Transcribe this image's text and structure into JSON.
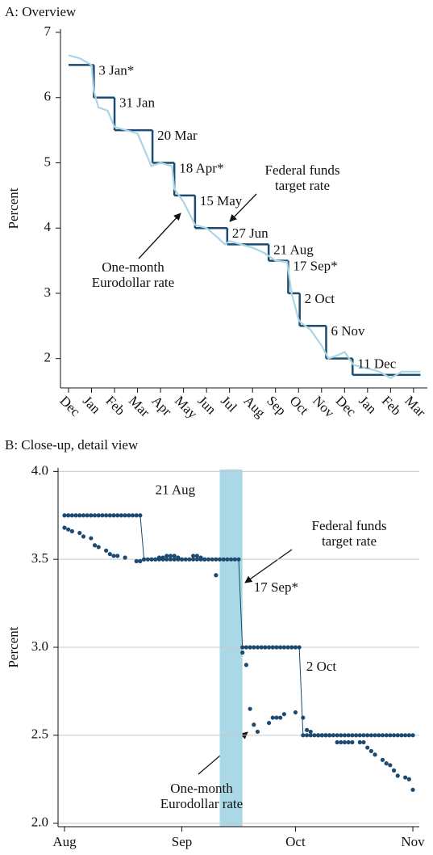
{
  "chart_data": [
    {
      "type": "line",
      "title": "A:  Overview",
      "ylabel": "Percent",
      "xlim": [
        -0.35,
        15.6
      ],
      "ylim": [
        1.55,
        7.05
      ],
      "yticks": [
        2,
        3,
        4,
        5,
        6,
        7
      ],
      "grid": false,
      "xticks": [
        {
          "value": 0,
          "label": "Dec"
        },
        {
          "value": 1,
          "label": "Jan"
        },
        {
          "value": 2,
          "label": "Feb"
        },
        {
          "value": 3,
          "label": "Mar"
        },
        {
          "value": 4,
          "label": "Apr"
        },
        {
          "value": 5,
          "label": "May"
        },
        {
          "value": 6,
          "label": "Jun"
        },
        {
          "value": 7,
          "label": "Jul"
        },
        {
          "value": 8,
          "label": "Aug"
        },
        {
          "value": 9,
          "label": "Sep"
        },
        {
          "value": 10,
          "label": "Oct"
        },
        {
          "value": 11,
          "label": "Nov"
        },
        {
          "value": 12,
          "label": "Dec"
        },
        {
          "value": 13,
          "label": "Jan"
        },
        {
          "value": 14,
          "label": "Feb"
        },
        {
          "value": 15,
          "label": "Mar"
        }
      ],
      "series": [
        {
          "name": "Federal funds target rate",
          "color": "#1d4a70",
          "step": true,
          "x": [
            0,
            1.1,
            2.0,
            3.65,
            4.6,
            5.5,
            6.9,
            8.7,
            9.55,
            10.05,
            11.2,
            12.35,
            15.3
          ],
          "values": [
            6.5,
            6.0,
            5.5,
            5.0,
            4.5,
            4.0,
            3.75,
            3.5,
            3.0,
            2.5,
            2.0,
            1.75,
            1.75
          ]
        },
        {
          "name": "One-month Eurodollar rate",
          "color": "#a9d6e5",
          "x": [
            0,
            0.5,
            1.0,
            1.1,
            1.3,
            1.7,
            2.0,
            2.5,
            3.0,
            3.3,
            3.6,
            4.0,
            4.5,
            4.6,
            5.0,
            5.5,
            6.0,
            6.5,
            6.8,
            7.0,
            7.5,
            8.0,
            8.5,
            9.0,
            9.5,
            9.7,
            10.0,
            10.1,
            10.5,
            11.0,
            11.3,
            11.7,
            12.0,
            12.4,
            13.0,
            13.5,
            14.0,
            14.5,
            15.3
          ],
          "values": [
            6.65,
            6.6,
            6.5,
            6.1,
            5.85,
            5.8,
            5.55,
            5.5,
            5.45,
            5.2,
            4.95,
            5.0,
            4.95,
            4.6,
            4.4,
            4.05,
            4.0,
            3.85,
            3.75,
            3.8,
            3.75,
            3.7,
            3.62,
            3.5,
            3.48,
            3.0,
            2.6,
            2.55,
            2.45,
            2.2,
            2.0,
            2.05,
            2.1,
            1.9,
            1.85,
            1.8,
            1.7,
            1.8,
            1.8
          ]
        }
      ],
      "annotations": [
        "3 Jan*",
        "31 Jan",
        "20 Mar",
        "18 Apr*",
        "15 May",
        "27 Jun",
        "21 Aug",
        "17 Sep*",
        "2 Oct",
        "6 Nov",
        "11 Dec"
      ]
    },
    {
      "type": "scatter",
      "title": "B: Close-up, detail view",
      "ylabel": "Percent",
      "xlim": [
        -1.7,
        93.7
      ],
      "ylim": [
        1.98,
        4.02
      ],
      "grid": true,
      "yticks": [
        {
          "value": 2.0,
          "label": "2.0"
        },
        2.5,
        {
          "value": 3.0,
          "label": "3.0"
        },
        3.5,
        {
          "value": 4.0,
          "label": "4.0"
        }
      ],
      "xticks": [
        {
          "value": 0,
          "label": "Aug"
        },
        {
          "value": 31,
          "label": "Sep"
        },
        {
          "value": 61,
          "label": "Oct"
        },
        {
          "value": 92,
          "label": "Nov"
        }
      ],
      "shaded_span": [
        41,
        47
      ],
      "shade_color": "#aad8e6",
      "series": [
        {
          "name": "Federal funds target rate",
          "color": "#1d4a70",
          "connect": true,
          "x": [
            0,
            1,
            2,
            3,
            4,
            5,
            6,
            7,
            8,
            9,
            10,
            11,
            12,
            13,
            14,
            15,
            16,
            17,
            18,
            19,
            20,
            21,
            22,
            23,
            24,
            25,
            26,
            27,
            28,
            29,
            30,
            31,
            32,
            33,
            34,
            35,
            36,
            37,
            38,
            39,
            40,
            41,
            42,
            43,
            44,
            45,
            46,
            47,
            48,
            49,
            50,
            51,
            52,
            53,
            54,
            55,
            56,
            57,
            58,
            59,
            60,
            61,
            62,
            63,
            64,
            65,
            66,
            67,
            68,
            69,
            70,
            71,
            72,
            73,
            74,
            75,
            76,
            77,
            78,
            79,
            80,
            81,
            82,
            83,
            84,
            85,
            86,
            87,
            88,
            89,
            90,
            91,
            92
          ],
          "values": [
            3.75,
            3.75,
            3.75,
            3.75,
            3.75,
            3.75,
            3.75,
            3.75,
            3.75,
            3.75,
            3.75,
            3.75,
            3.75,
            3.75,
            3.75,
            3.75,
            3.75,
            3.75,
            3.75,
            3.75,
            3.75,
            3.5,
            3.5,
            3.5,
            3.5,
            3.5,
            3.5,
            3.5,
            3.5,
            3.5,
            3.5,
            3.5,
            3.5,
            3.5,
            3.5,
            3.5,
            3.5,
            3.5,
            3.5,
            3.5,
            3.5,
            3.5,
            3.5,
            3.5,
            3.5,
            3.5,
            3.5,
            3.0,
            3.0,
            3.0,
            3.0,
            3.0,
            3.0,
            3.0,
            3.0,
            3.0,
            3.0,
            3.0,
            3.0,
            3.0,
            3.0,
            3.0,
            3.0,
            2.5,
            2.5,
            2.5,
            2.5,
            2.5,
            2.5,
            2.5,
            2.5,
            2.5,
            2.5,
            2.5,
            2.5,
            2.5,
            2.5,
            2.5,
            2.5,
            2.5,
            2.5,
            2.5,
            2.5,
            2.5,
            2.5,
            2.5,
            2.5,
            2.5,
            2.5,
            2.5,
            2.5,
            2.5,
            2.5
          ]
        },
        {
          "name": "One-month Eurodollar rate",
          "color": "#1d4a70",
          "x": [
            0,
            1,
            2,
            4,
            5,
            7,
            8,
            9,
            11,
            12,
            13,
            14,
            16,
            19,
            20,
            21,
            23,
            24,
            25,
            26,
            27,
            28,
            29,
            30,
            31,
            34,
            35,
            36,
            37,
            40,
            47,
            48,
            49,
            50,
            51,
            54,
            55,
            56,
            57,
            58,
            61,
            63,
            64,
            65,
            67,
            68,
            69,
            70,
            72,
            73,
            74,
            75,
            76,
            78,
            79,
            80,
            81,
            82,
            84,
            85,
            86,
            87,
            88,
            90,
            91,
            92
          ],
          "values": [
            3.68,
            3.67,
            3.66,
            3.65,
            3.63,
            3.62,
            3.58,
            3.57,
            3.55,
            3.53,
            3.52,
            3.52,
            3.51,
            3.49,
            3.49,
            3.5,
            3.5,
            3.5,
            3.51,
            3.51,
            3.52,
            3.52,
            3.52,
            3.51,
            3.5,
            3.52,
            3.52,
            3.51,
            3.5,
            3.41,
            2.97,
            2.9,
            2.65,
            2.56,
            2.52,
            2.57,
            2.6,
            2.6,
            2.6,
            2.62,
            2.63,
            2.6,
            2.53,
            2.52,
            2.5,
            2.5,
            2.5,
            2.5,
            2.46,
            2.46,
            2.46,
            2.46,
            2.46,
            2.46,
            2.46,
            2.43,
            2.41,
            2.39,
            2.36,
            2.34,
            2.33,
            2.3,
            2.27,
            2.26,
            2.25,
            2.19
          ]
        }
      ],
      "annotations": [
        "21 Aug",
        "17 Sep*",
        "2 Oct"
      ]
    }
  ]
}
